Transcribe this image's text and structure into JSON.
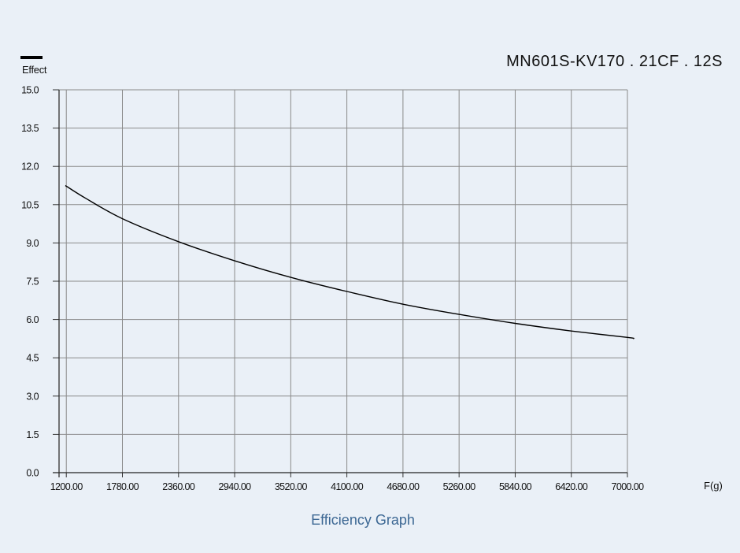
{
  "chart_data": {
    "type": "line",
    "title": "MN601S-KV170 . 21CF . 12S",
    "legend": [
      {
        "label": "Effect",
        "color": "#000000"
      }
    ],
    "xlabel": "F(g)",
    "ylabel": "Effect",
    "caption": "Efficiency Graph",
    "xlim": [
      1125,
      7000
    ],
    "ylim": [
      0,
      15
    ],
    "x_ticks": [
      "1200.00",
      "1780.00",
      "2360.00",
      "2940.00",
      "3520.00",
      "4100.00",
      "4680.00",
      "5260.00",
      "5840.00",
      "6420.00",
      "7000.00"
    ],
    "x_tick_values": [
      1200,
      1780,
      2360,
      2940,
      3520,
      4100,
      4680,
      5260,
      5840,
      6420,
      7000
    ],
    "y_ticks": [
      "0.0",
      "1.5",
      "3.0",
      "4.5",
      "6.0",
      "7.5",
      "9.0",
      "10.5",
      "12.0",
      "13.5",
      "15.0"
    ],
    "y_tick_values": [
      0,
      1.5,
      3,
      4.5,
      6,
      7.5,
      9,
      10.5,
      12,
      13.5,
      15
    ],
    "grid": true,
    "series": [
      {
        "name": "Effect",
        "color": "#000000",
        "x": [
          1190,
          1400,
          1780,
          2360,
          2940,
          3520,
          4100,
          4680,
          5260,
          5840,
          6420,
          7000,
          7065
        ],
        "y": [
          11.25,
          10.75,
          9.95,
          9.05,
          8.3,
          7.65,
          7.1,
          6.6,
          6.2,
          5.85,
          5.55,
          5.3,
          5.25
        ]
      }
    ]
  }
}
